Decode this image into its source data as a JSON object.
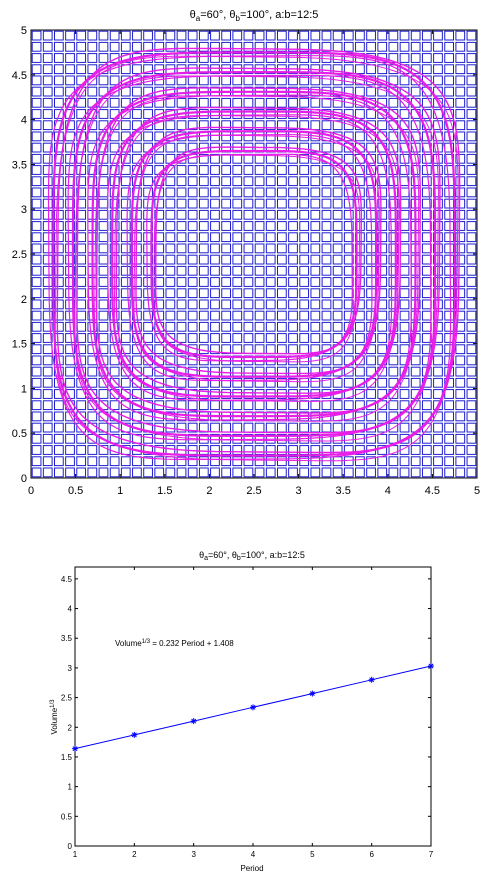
{
  "chart_data": [
    {
      "type": "contour",
      "title": "θa=60°, θb=100°, a:b=12:5",
      "title_parts": {
        "sym_a": "θ",
        "sub_a": "a",
        "mid_a": "=60°, ",
        "sym_b": "θ",
        "sub_b": "b",
        "rest": "=100°, a:b=12:5"
      },
      "xlim": [
        0,
        5
      ],
      "ylim": [
        0,
        5
      ],
      "x_ticks": [
        "0",
        "0.5",
        "1",
        "1.5",
        "2",
        "2.5",
        "3",
        "3.5",
        "4",
        "4.5",
        "5"
      ],
      "y_ticks": [
        "0",
        "0.5",
        "1",
        "1.5",
        "2",
        "2.5",
        "3",
        "3.5",
        "4",
        "4.5",
        "5"
      ],
      "grid_cells": 40,
      "grid_color": "#1f1fcf",
      "contour_color": "#e81ee8",
      "contour_levels": 6
    },
    {
      "type": "line",
      "title": "θa=60°, θb=100°, a:b=12:5",
      "title_parts": {
        "sym_a": "θ",
        "sub_a": "a",
        "mid_a": "=60°, ",
        "sym_b": "θ",
        "sub_b": "b",
        "rest": "=100°, a:b=12:5"
      },
      "xlabel": "Period",
      "ylabel": "Volume1/3",
      "ylabel_parts": {
        "base": "Volume",
        "sup": "1/3"
      },
      "xlim": [
        1,
        7
      ],
      "ylim": [
        0,
        4.7
      ],
      "x_ticks": [
        "1",
        "2",
        "3",
        "4",
        "5",
        "6",
        "7"
      ],
      "y_ticks": [
        "0",
        "0.5",
        "1",
        "1.5",
        "2",
        "2.5",
        "3",
        "3.5",
        "4",
        "4.5"
      ],
      "annotation": "Volume1/3 = 0.232 Period + 1.408",
      "annotation_parts": {
        "base": "Volume",
        "sup": "1/3",
        "rest": " = 0.232 Period + 1.408"
      },
      "series": [
        {
          "x": [
            1,
            2,
            3,
            4,
            5,
            6,
            7
          ],
          "y": [
            1.64,
            1.872,
            2.104,
            2.336,
            2.568,
            2.8,
            3.032
          ]
        }
      ],
      "line_color": "#0000ff"
    }
  ]
}
